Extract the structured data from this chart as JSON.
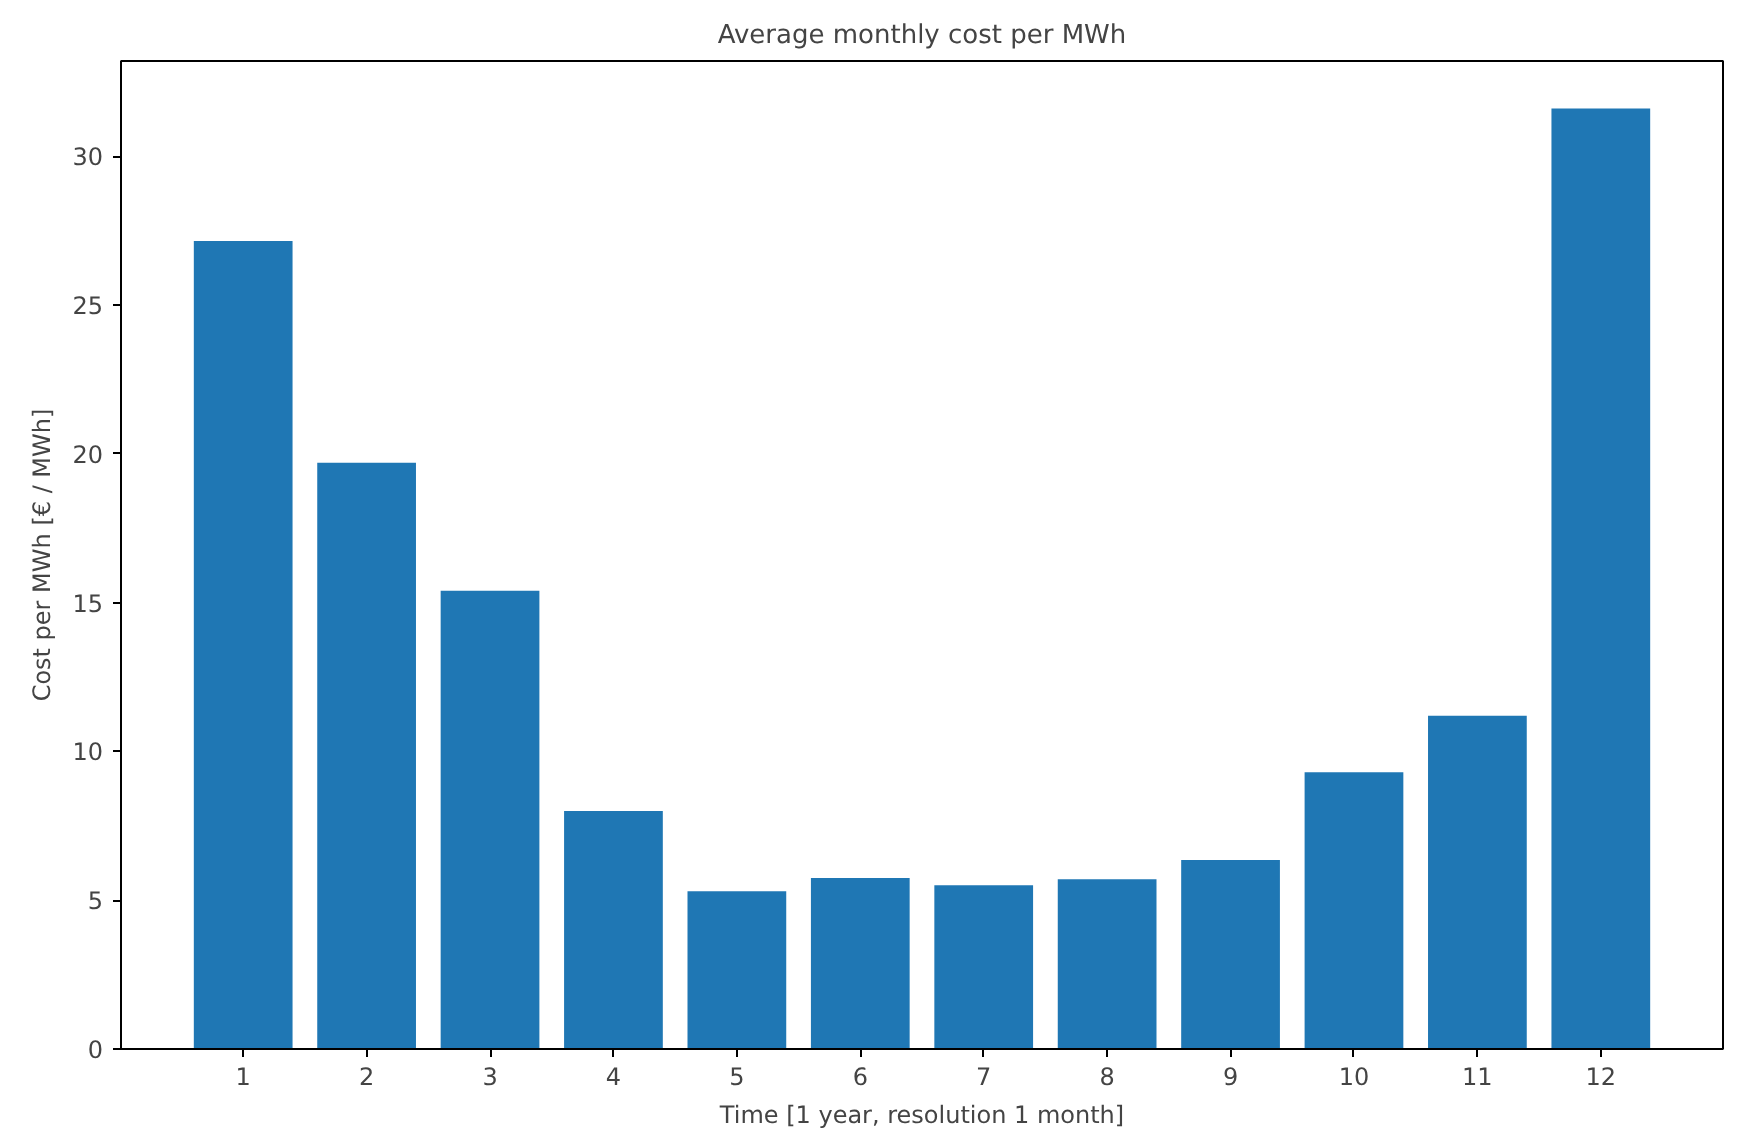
{
  "chart_data": {
    "type": "bar",
    "title": "Average monthly cost per MWh",
    "xlabel": "Time [1 year, resolution 1 month]",
    "ylabel": "Cost per MWh [€ / MWh]",
    "x": [
      1,
      2,
      3,
      4,
      5,
      6,
      7,
      8,
      9,
      10,
      11,
      12
    ],
    "values": [
      27.15,
      19.7,
      15.4,
      8.0,
      5.3,
      5.75,
      5.5,
      5.7,
      6.35,
      9.3,
      11.2,
      31.6
    ],
    "color": "#1f77b4",
    "xlim": [
      0.01,
      12.99
    ],
    "xticks": [
      1,
      2,
      3,
      4,
      5,
      6,
      7,
      8,
      9,
      10,
      11,
      12
    ],
    "ylim": [
      0,
      33.2
    ],
    "yticks": [
      0,
      5,
      10,
      15,
      20,
      25,
      30
    ],
    "grid": false
  }
}
